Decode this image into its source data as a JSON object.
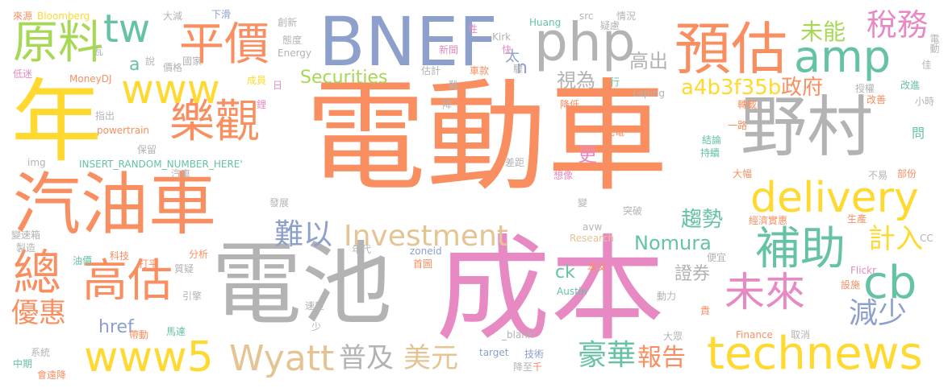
{
  "palette": {
    "orange": "#f98f61",
    "gray": "#b3b3b3",
    "pink": "#e78ac3",
    "blue": "#8da0cb",
    "yellow": "#ffd92f",
    "green": "#a6d854",
    "teal": "#66c2a5",
    "tan": "#e5c494"
  },
  "words": [
    {
      "text": "電動車",
      "color": "#f98f61"
    },
    {
      "text": "電池",
      "color": "#b3b3b3"
    },
    {
      "text": "成本",
      "color": "#e78ac3"
    },
    {
      "text": "BNEF",
      "color": "#8da0cb"
    },
    {
      "text": "年",
      "color": "#ffd92f"
    },
    {
      "text": "汽油車",
      "color": "#f98f61"
    },
    {
      "text": "野村",
      "color": "#b3b3b3"
    },
    {
      "text": "預估",
      "color": "#f98f61"
    },
    {
      "text": "php",
      "color": "#b3b3b3"
    },
    {
      "text": "technews",
      "color": "#ffd92f"
    },
    {
      "text": "delivery",
      "color": "#ffd92f"
    },
    {
      "text": "amp",
      "color": "#66c2a5"
    },
    {
      "text": "補助",
      "color": "#66c2a5"
    },
    {
      "text": "www5",
      "color": "#ffd92f"
    },
    {
      "text": "樂觀",
      "color": "#f98f61"
    },
    {
      "text": "平價",
      "color": "#f98f61"
    },
    {
      "text": "www",
      "color": "#ffd92f"
    },
    {
      "text": "原料",
      "color": "#a6d854"
    },
    {
      "text": "總",
      "color": "#f98f61"
    },
    {
      "text": "高估",
      "color": "#f98f61"
    },
    {
      "text": "cb",
      "color": "#66c2a5"
    },
    {
      "text": "未來",
      "color": "#e78ac3"
    },
    {
      "text": "Wyatt",
      "color": "#e5c494"
    },
    {
      "text": "tw",
      "color": "#66c2a5"
    },
    {
      "text": "稅務",
      "color": "#e78ac3"
    },
    {
      "text": "未能",
      "color": "#a6d854"
    },
    {
      "text": "減少",
      "color": "#8da0cb"
    },
    {
      "text": "Investment",
      "color": "#e5c494"
    },
    {
      "text": "普及",
      "color": "#b3b3b3"
    },
    {
      "text": "美元",
      "color": "#e5c494"
    },
    {
      "text": "優惠",
      "color": "#f98f61"
    },
    {
      "text": "豪華",
      "color": "#66c2a5"
    },
    {
      "text": "報告",
      "color": "#f98f61"
    },
    {
      "text": "難以",
      "color": "#8da0cb"
    },
    {
      "text": "計入",
      "color": "#ffd92f"
    },
    {
      "text": "趨勢",
      "color": "#66c2a5"
    },
    {
      "text": "a4b3f35b",
      "color": "#ffd92f"
    },
    {
      "text": "Nomura",
      "color": "#66c2a5"
    },
    {
      "text": "政府",
      "color": "#f98f61"
    },
    {
      "text": "Securities",
      "color": "#a6d854"
    },
    {
      "text": "href",
      "color": "#8da0cb"
    },
    {
      "text": "高出",
      "color": "#b3b3b3"
    },
    {
      "text": "視為",
      "color": "#b3b3b3"
    },
    {
      "text": "ck",
      "color": "#66c2a5"
    },
    {
      "text": "a",
      "color": "#66c2a5"
    },
    {
      "text": "更",
      "color": "#e78ac3"
    },
    {
      "text": "證券",
      "color": "#b3b3b3"
    },
    {
      "text": "n",
      "color": "#8da0cb"
    },
    {
      "text": "太",
      "color": "#8da0cb"
    },
    {
      "text": "來源",
      "color": "#f98f61"
    },
    {
      "text": "Bloomberg",
      "color": "#ffd92f"
    },
    {
      "text": "瓦",
      "color": "#b3b3b3"
    },
    {
      "text": "低迷",
      "color": "#e78ac3"
    },
    {
      "text": "MoneyDJ",
      "color": "#f98f61"
    },
    {
      "text": "說",
      "color": "#b3b3b3"
    },
    {
      "text": "價格",
      "color": "#b3b3b3"
    },
    {
      "text": "國家",
      "color": "#b3b3b3"
    },
    {
      "text": "大減",
      "color": "#b3b3b3"
    },
    {
      "text": "下滑",
      "color": "#8da0cb"
    },
    {
      "text": "創新",
      "color": "#b3b3b3"
    },
    {
      "text": "態度",
      "color": "#b3b3b3"
    },
    {
      "text": "Energy",
      "color": "#b3b3b3"
    },
    {
      "text": "成員",
      "color": "#ffd92f"
    },
    {
      "text": "日",
      "color": "#e78ac3"
    },
    {
      "text": "鋰",
      "color": "#e78ac3"
    },
    {
      "text": "指出",
      "color": "#b3b3b3"
    },
    {
      "text": "powertrain",
      "color": "#f98f61"
    },
    {
      "text": "保留",
      "color": "#b3b3b3"
    },
    {
      "text": "img",
      "color": "#b3b3b3"
    },
    {
      "text": "INSERT_RANDOM_NUMBER_HERE'",
      "color": "#66c2a5"
    },
    {
      "text": "汽車",
      "color": "#b3b3b3"
    },
    {
      "text": "發展",
      "color": "#b3b3b3"
    },
    {
      "text": "變速箱",
      "color": "#b3b3b3"
    },
    {
      "text": "製造",
      "color": "#b3b3b3"
    },
    {
      "text": "油價",
      "color": "#66c2a5"
    },
    {
      "text": "科技",
      "color": "#f98f61"
    },
    {
      "text": "打平",
      "color": "#f98f61"
    },
    {
      "text": "分析",
      "color": "#f98f61"
    },
    {
      "text": "質疑",
      "color": "#b3b3b3"
    },
    {
      "text": "引擎",
      "color": "#b3b3b3"
    },
    {
      "text": "帶動",
      "color": "#f98f61"
    },
    {
      "text": "馬達",
      "color": "#66c2a5"
    },
    {
      "text": "系統",
      "color": "#b3b3b3"
    },
    {
      "text": "中期",
      "color": "#66c2a5"
    },
    {
      "text": "會遠降",
      "color": "#f98f61"
    },
    {
      "text": "速度",
      "color": "#b3b3b3"
    },
    {
      "text": "少",
      "color": "#b3b3b3"
    },
    {
      "text": "年代",
      "color": "#b3b3b3"
    },
    {
      "text": "zoneid",
      "color": "#8da0cb"
    },
    {
      "text": "首圖",
      "color": "#f98f61"
    },
    {
      "text": "_blank'",
      "color": "#b3b3b3"
    },
    {
      "text": "target",
      "color": "#8da0cb"
    },
    {
      "text": "技術",
      "color": "#8da0cb"
    },
    {
      "text": "降至",
      "color": "#b3b3b3"
    },
    {
      "text": "千",
      "color": "#f98f61"
    },
    {
      "text": "Austin",
      "color": "#66c2a5"
    },
    {
      "text": "本文",
      "color": "#f98f61"
    },
    {
      "text": "avw",
      "color": "#b3b3b3"
    },
    {
      "text": "Research",
      "color": "#e5c494"
    },
    {
      "text": "動力",
      "color": "#b3b3b3"
    },
    {
      "text": "貴",
      "color": "#f98f61"
    },
    {
      "text": "大眾",
      "color": "#b3b3b3"
    },
    {
      "text": "Finance",
      "color": "#f98f61"
    },
    {
      "text": "取消",
      "color": "#b3b3b3"
    },
    {
      "text": "Flickr",
      "color": "#e78ac3"
    },
    {
      "text": "設施",
      "color": "#f98f61"
    },
    {
      "text": "CC",
      "color": "#b3b3b3"
    },
    {
      "text": "生產",
      "color": "#f98f61"
    },
    {
      "text": "經濟實惠",
      "color": "#f98f61"
    },
    {
      "text": "便宜",
      "color": "#b3b3b3"
    },
    {
      "text": "突破",
      "color": "#b3b3b3"
    },
    {
      "text": "變",
      "color": "#b3b3b3"
    },
    {
      "text": "差距",
      "color": "#b3b3b3"
    },
    {
      "text": "想像",
      "color": "#e78ac3"
    },
    {
      "text": "大幅",
      "color": "#f98f61"
    },
    {
      "text": "不易",
      "color": "#b3b3b3"
    },
    {
      "text": "部份",
      "color": "#f98f61"
    },
    {
      "text": "問",
      "color": "#66c2a5"
    },
    {
      "text": "持續",
      "color": "#66c2a5"
    },
    {
      "text": "結論",
      "color": "#66c2a5"
    },
    {
      "text": "一路",
      "color": "#f98f61"
    },
    {
      "text": "充電",
      "color": "#f98f61"
    },
    {
      "text": "轉載",
      "color": "#f98f61"
    },
    {
      "text": "降低",
      "color": "#f98f61"
    },
    {
      "text": "授權",
      "color": "#b3b3b3"
    },
    {
      "text": "改善",
      "color": "#f98f61"
    },
    {
      "text": "小時",
      "color": "#b3b3b3"
    },
    {
      "text": "改進",
      "color": "#66c2a5"
    },
    {
      "text": "佳",
      "color": "#b3b3b3"
    },
    {
      "text": "電動",
      "color": "#b3b3b3"
    },
    {
      "text": "Leping",
      "color": "#b3b3b3"
    },
    {
      "text": "行",
      "color": "#66c2a5"
    },
    {
      "text": "情況",
      "color": "#b3b3b3"
    },
    {
      "text": "疑慮",
      "color": "#b3b3b3"
    },
    {
      "text": "src",
      "color": "#b3b3b3"
    },
    {
      "text": "Huang",
      "color": "#66c2a5"
    },
    {
      "text": "Kirk",
      "color": "#b3b3b3"
    },
    {
      "text": "性",
      "color": "#e78ac3"
    },
    {
      "text": "快",
      "color": "#e78ac3"
    },
    {
      "text": "驟",
      "color": "#b3b3b3"
    },
    {
      "text": "新聞",
      "color": "#e78ac3"
    },
    {
      "text": "估計",
      "color": "#b3b3b3"
    },
    {
      "text": "難",
      "color": "#b3b3b3"
    },
    {
      "text": "降",
      "color": "#b3b3b3"
    },
    {
      "text": "車款",
      "color": "#f98f61"
    }
  ]
}
